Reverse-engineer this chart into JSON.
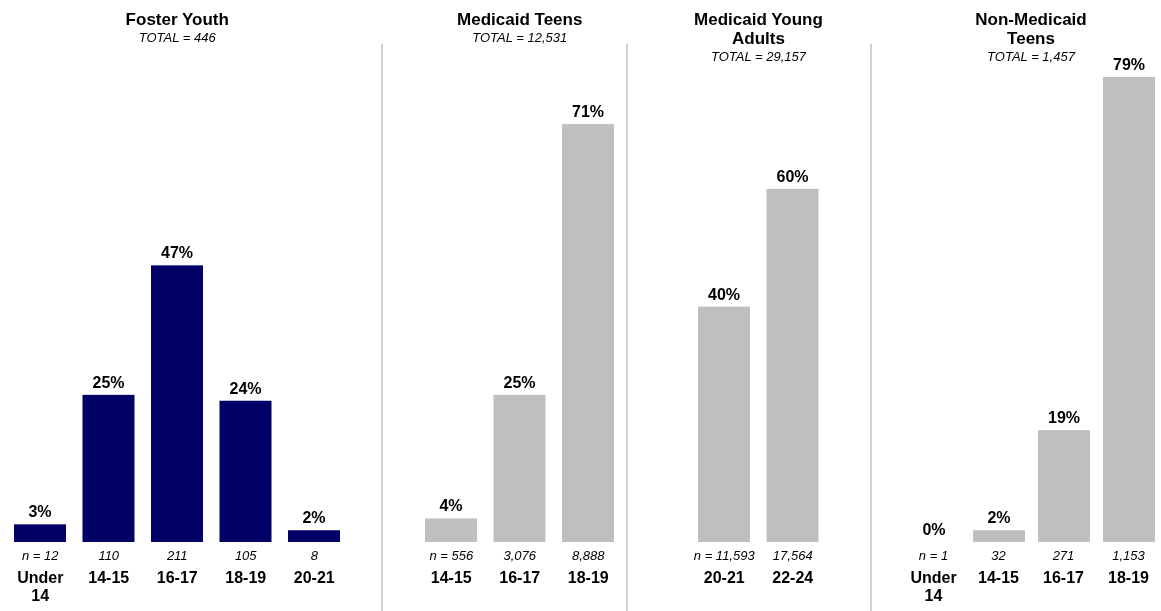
{
  "chart_data": [
    {
      "type": "bar",
      "title": "Foster Youth",
      "subtitle": "TOTAL = 446",
      "categories": [
        "Under 14",
        "14-15",
        "16-17",
        "18-19",
        "20-21"
      ],
      "values": [
        3,
        25,
        47,
        24,
        2
      ],
      "value_labels": [
        "3%",
        "25%",
        "47%",
        "24%",
        "2%"
      ],
      "color": "#000066",
      "tick_labels": "x",
      "annotations": [
        "n = 12",
        "110",
        "211",
        "105",
        "8"
      ]
    },
    {
      "type": "bar",
      "title": "Medicaid Teens",
      "subtitle": "TOTAL = 12,531",
      "categories": [
        "14-15",
        "16-17",
        "18-19"
      ],
      "values": [
        4,
        25,
        71
      ],
      "value_labels": [
        "4%",
        "25%",
        "71%"
      ],
      "color": "#bfbfbf",
      "tick_labels": "x",
      "annotations": [
        "n = 556",
        "3,076",
        "8,888"
      ]
    },
    {
      "type": "bar",
      "title": "Medicaid Young Adults",
      "subtitle": "TOTAL = 29,157",
      "categories": [
        "20-21",
        "22-24"
      ],
      "values": [
        40,
        60
      ],
      "value_labels": [
        "40%",
        "60%"
      ],
      "color": "#bfbfbf",
      "tick_labels": "x",
      "annotations": [
        "n = 11,593",
        "17,564"
      ]
    },
    {
      "type": "bar",
      "title": "Non-Medicaid Teens",
      "subtitle": "TOTAL = 1,457",
      "categories": [
        "Under 14",
        "14-15",
        "16-17",
        "18-19"
      ],
      "values": [
        0,
        2,
        19,
        79
      ],
      "value_labels": [
        "0%",
        "2%",
        "19%",
        "79%"
      ],
      "color": "#bfbfbf",
      "tick_labels": "x",
      "annotations": [
        "n = 1",
        "32",
        "271",
        "1,153"
      ]
    }
  ]
}
